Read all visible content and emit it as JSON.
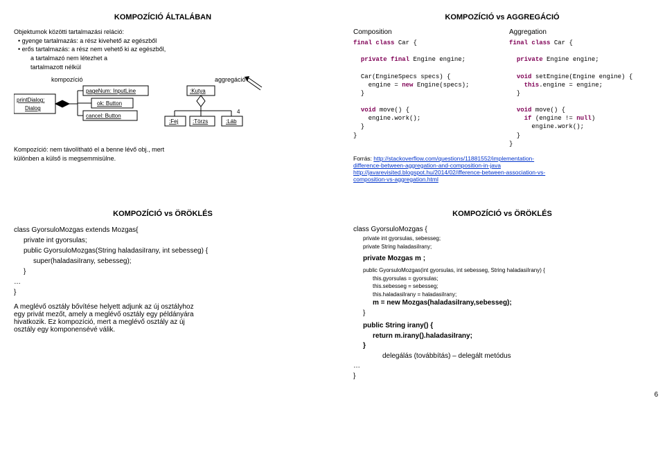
{
  "pageNumber": "6",
  "tl": {
    "title": "KOMPOZÍCIÓ ÁLTALÁBAN",
    "intro": "Objektumok közötti tartalmazási reláció:",
    "b1": "• gyenge tartalmazás: a rész kivehető az egészből",
    "b2": "• erős tartalmazás: a rész nem vehető ki az egészből,",
    "b2a": "a tartalmazó nem létezhet a",
    "b2b": "tartalmazott nélkül",
    "lblKomp": "kompozíció",
    "lblAggr": "aggregáció",
    "foot1": "Kompozíció: nem távolítható el a benne lévő obj., mert",
    "foot2": "különben a külső is megsemmisülne.",
    "diagram": {
      "printDialog": "printDialog:",
      "dialog": "Dialog",
      "pageNum": "pageNum: InputLine",
      "ok": "ok: Button",
      "cancel": "cancel: Button",
      "kutya": ":Kutya",
      "fej": ":Fej",
      "torzs": ":Törzs",
      "lab": ":Láb",
      "mult4": "4"
    }
  },
  "tr": {
    "title": "KOMPOZÍCIÓ vs AGGREGÁCIÓ",
    "h1": "Composition",
    "h2": "Aggregation",
    "code1": "final class Car {\n\n  private final Engine engine;\n\n  Car(EngineSpecs specs) {\n    engine = new Engine(specs);\n  }\n\n  void move() {\n    engine.work();\n  }\n}",
    "code2": "final class Car {\n\n  private Engine engine;\n\n  void setEngine(Engine engine) {\n    this.engine = engine;\n  }\n\n  void move() {\n    if (engine != null)\n      engine.work();\n  }\n}",
    "srcLabel": "Forrás: ",
    "src1": "http://stackoverflow.com/questions/11881552/implementation-",
    "src2": "difference-between-aggregation-and-composition-in-java",
    "src3": "http://javarevisited.blogspot.hu/2014/02/ifference-between-association-vs-",
    "src4": "composition-vs-aggregation.html"
  },
  "bl": {
    "title": "KOMPOZÍCIÓ vs ÖRÖKLÉS",
    "l1a": "class GyorsuloMozgas extends Mozgas{",
    "l2": "private int gyorsulas;",
    "l3": "public GyorsuloMozgas(String haladasiIrany, int sebesseg) {",
    "l4": "super(haladasiIrany, sebesseg);",
    "l5": "}",
    "l6": "…",
    "l7": "}",
    "p1": "A meglévő osztály  bővítése helyett adjunk az új osztályhoz",
    "p2": "egy privát mezőt, amely a meglévő osztály egy példányára",
    "p3": "hivatkozik. Ez kompozíció, mert a meglévő osztály az új",
    "p4": "osztály egy komponensévé válik."
  },
  "br": {
    "title": "KOMPOZÍCIÓ vs ÖRÖKLÉS",
    "l1": "class GyorsuloMozgas {",
    "l2": "private int gyorsulas, sebesseg;",
    "l3": "private String haladasiIrany;",
    "l4": "private Mozgas m ;",
    "l5": "public GyorsuloMozgas(int gyorsulas, int sebesseg, String haladasiIrany) {",
    "l6": "this.gyorsulas = gyorsulas;",
    "l7": "this.sebesseg = sebesseg;",
    "l8": "this.haladasiIrany = haladasiIrany;",
    "l9": "m = new Mozgas(haladasiIrany,sebesseg);",
    "l10": "}",
    "l11": "public String irany() {",
    "l12": "return m.irany().haladasiIrany;",
    "l13": "}",
    "l14": "…",
    "l15": "}",
    "deleg": "delegálás (továbbítás) – delegált metódus"
  }
}
